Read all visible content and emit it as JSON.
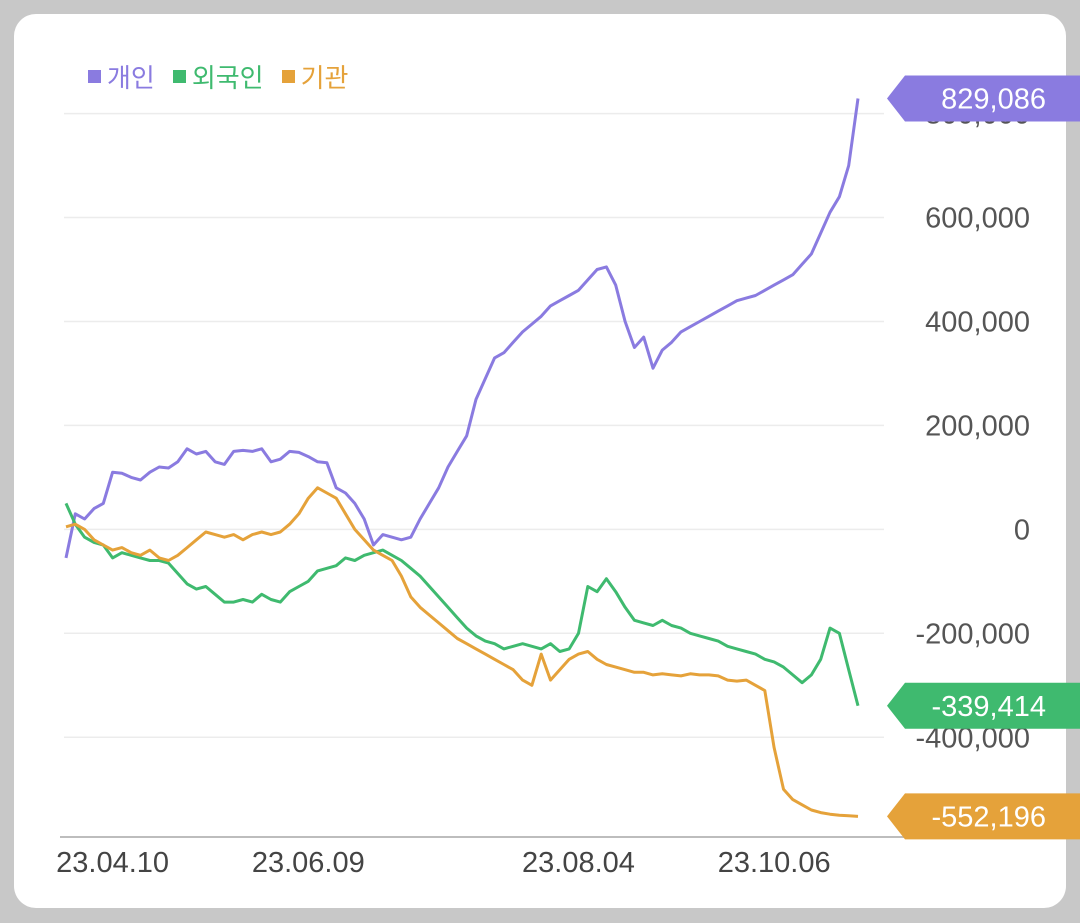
{
  "legend": [
    {
      "label": "개인",
      "color": "#8a7be0"
    },
    {
      "label": "외국인",
      "color": "#3fba6f"
    },
    {
      "label": "기관",
      "color": "#e5a23a"
    }
  ],
  "chart_data": {
    "type": "line",
    "ylim": [
      -590000,
      880000
    ],
    "yticks": [
      {
        "value": 800000,
        "label": "800,000"
      },
      {
        "value": 600000,
        "label": "600,000"
      },
      {
        "value": 400000,
        "label": "400,000"
      },
      {
        "value": 200000,
        "label": "200,000"
      },
      {
        "value": 0,
        "label": "0"
      },
      {
        "value": -200000,
        "label": "-200,000"
      },
      {
        "value": -400000,
        "label": "-400,000"
      }
    ],
    "xticks": [
      {
        "index": 5,
        "label": "23.04.10"
      },
      {
        "index": 26,
        "label": "23.06.09"
      },
      {
        "index": 55,
        "label": "23.08.04"
      },
      {
        "index": 76,
        "label": "23.10.06"
      }
    ],
    "n_points": 86,
    "series": [
      {
        "name": "개인",
        "color": "#8a7be0",
        "end_label": "829,086",
        "values": [
          -55000,
          30000,
          20000,
          40000,
          50000,
          110000,
          108000,
          100000,
          95000,
          110000,
          120000,
          118000,
          130000,
          155000,
          145000,
          150000,
          130000,
          125000,
          150000,
          152000,
          150000,
          155000,
          130000,
          135000,
          150000,
          148000,
          140000,
          130000,
          128000,
          80000,
          70000,
          50000,
          20000,
          -30000,
          -10000,
          -15000,
          -20000,
          -15000,
          20000,
          50000,
          80000,
          120000,
          150000,
          180000,
          250000,
          290000,
          330000,
          340000,
          360000,
          380000,
          395000,
          410000,
          430000,
          440000,
          450000,
          460000,
          480000,
          500000,
          505000,
          470000,
          400000,
          350000,
          370000,
          310000,
          345000,
          360000,
          380000,
          390000,
          400000,
          410000,
          420000,
          430000,
          440000,
          445000,
          450000,
          460000,
          470000,
          480000,
          490000,
          510000,
          530000,
          570000,
          610000,
          640000,
          700000,
          829086
        ]
      },
      {
        "name": "외국인",
        "color": "#3fba6f",
        "end_label": "-339,414",
        "values": [
          50000,
          10000,
          -15000,
          -25000,
          -30000,
          -55000,
          -45000,
          -50000,
          -55000,
          -60000,
          -60000,
          -65000,
          -85000,
          -105000,
          -115000,
          -110000,
          -125000,
          -140000,
          -140000,
          -135000,
          -140000,
          -125000,
          -135000,
          -140000,
          -120000,
          -110000,
          -100000,
          -80000,
          -75000,
          -70000,
          -55000,
          -60000,
          -50000,
          -45000,
          -40000,
          -50000,
          -60000,
          -75000,
          -90000,
          -110000,
          -130000,
          -150000,
          -170000,
          -190000,
          -205000,
          -215000,
          -220000,
          -230000,
          -225000,
          -220000,
          -225000,
          -230000,
          -220000,
          -235000,
          -230000,
          -200000,
          -110000,
          -120000,
          -95000,
          -120000,
          -150000,
          -175000,
          -180000,
          -185000,
          -175000,
          -185000,
          -190000,
          -200000,
          -205000,
          -210000,
          -215000,
          -225000,
          -230000,
          -235000,
          -240000,
          -250000,
          -255000,
          -265000,
          -280000,
          -295000,
          -280000,
          -250000,
          -190000,
          -200000,
          -270000,
          -339414
        ]
      },
      {
        "name": "기관",
        "color": "#e5a23a",
        "end_label": "-552,196",
        "values": [
          5000,
          10000,
          0,
          -20000,
          -30000,
          -40000,
          -35000,
          -45000,
          -50000,
          -40000,
          -55000,
          -60000,
          -50000,
          -35000,
          -20000,
          -5000,
          -10000,
          -15000,
          -10000,
          -20000,
          -10000,
          -5000,
          -10000,
          -5000,
          10000,
          30000,
          60000,
          80000,
          70000,
          60000,
          30000,
          0,
          -20000,
          -40000,
          -50000,
          -60000,
          -90000,
          -130000,
          -150000,
          -165000,
          -180000,
          -195000,
          -210000,
          -220000,
          -230000,
          -240000,
          -250000,
          -260000,
          -270000,
          -290000,
          -300000,
          -240000,
          -290000,
          -270000,
          -250000,
          -240000,
          -235000,
          -250000,
          -260000,
          -265000,
          -270000,
          -275000,
          -275000,
          -280000,
          -278000,
          -280000,
          -282000,
          -278000,
          -280000,
          -280000,
          -282000,
          -290000,
          -292000,
          -290000,
          -300000,
          -310000,
          -420000,
          -500000,
          -520000,
          -530000,
          -540000,
          -545000,
          -548000,
          -550000,
          -551000,
          -552196
        ]
      }
    ]
  }
}
